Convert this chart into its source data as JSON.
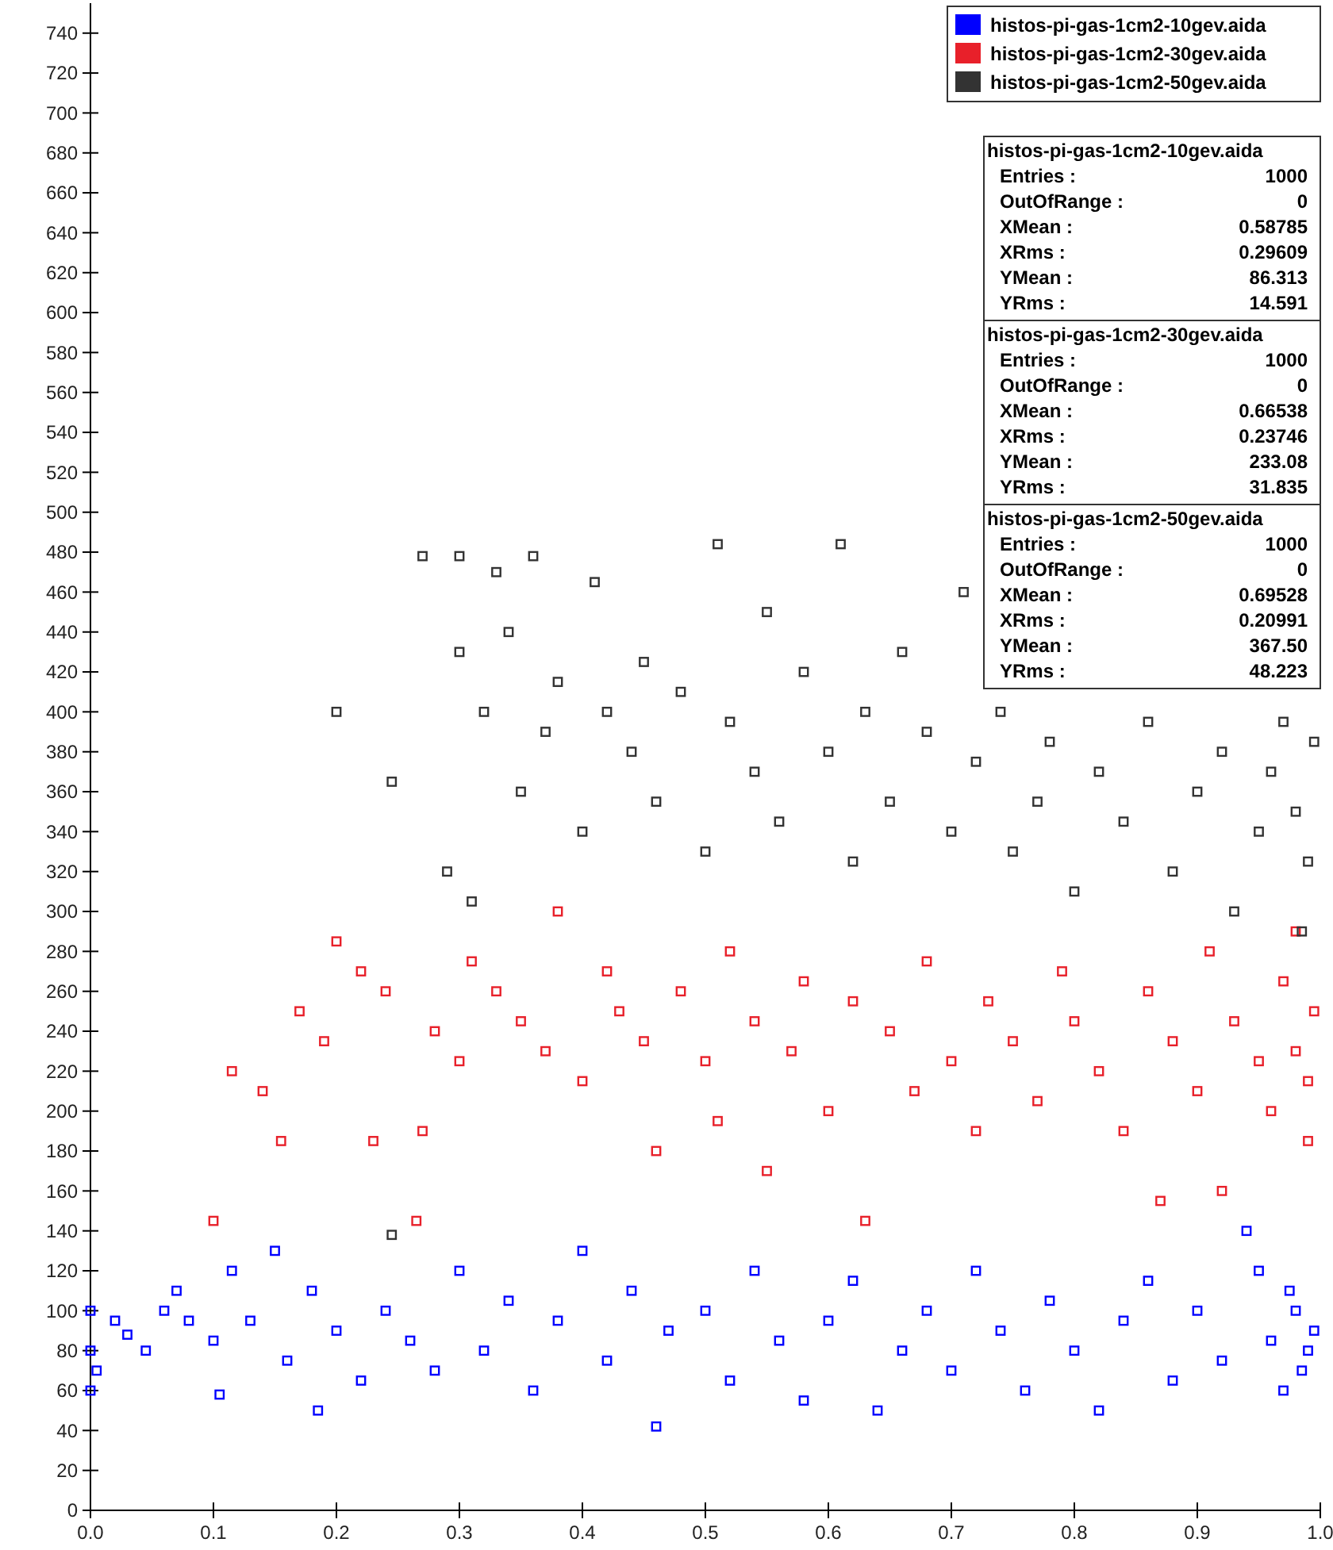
{
  "chart_data": {
    "type": "scatter",
    "marker": "square",
    "legend": "top right",
    "grid": false,
    "xlim": [
      0,
      1
    ],
    "xticks": [
      {
        "value": 0,
        "label": "0.0"
      },
      0.1,
      0.2,
      0.3,
      0.4,
      0.5,
      0.6,
      0.7,
      0.8,
      0.9,
      {
        "value": 1,
        "label": "1.0"
      }
    ],
    "ylim": [
      0,
      755
    ],
    "yticks": [
      0,
      20,
      40,
      60,
      80,
      100,
      120,
      140,
      160,
      180,
      200,
      220,
      240,
      260,
      280,
      300,
      320,
      340,
      360,
      380,
      400,
      420,
      440,
      460,
      480,
      500,
      520,
      540,
      560,
      580,
      600,
      620,
      640,
      660,
      680,
      700,
      720,
      740
    ],
    "series": [
      {
        "name": "histos-pi-gas-1cm2-10gev.aida",
        "color": "#0000ff",
        "x": [
          0.0,
          0.0,
          0.0,
          0.005,
          0.02,
          0.03,
          0.045,
          0.06,
          0.07,
          0.08,
          0.1,
          0.105,
          0.115,
          0.13,
          0.15,
          0.16,
          0.18,
          0.185,
          0.2,
          0.22,
          0.24,
          0.26,
          0.28,
          0.3,
          0.32,
          0.34,
          0.36,
          0.38,
          0.4,
          0.42,
          0.44,
          0.46,
          0.47,
          0.5,
          0.52,
          0.54,
          0.56,
          0.58,
          0.6,
          0.62,
          0.64,
          0.66,
          0.68,
          0.7,
          0.72,
          0.74,
          0.76,
          0.78,
          0.8,
          0.82,
          0.84,
          0.86,
          0.88,
          0.9,
          0.92,
          0.94,
          0.95,
          0.96,
          0.97,
          0.98,
          0.99,
          0.995,
          0.985,
          0.975
        ],
        "values": [
          60,
          80,
          100,
          70,
          95,
          88,
          80,
          100,
          110,
          95,
          85,
          58,
          120,
          95,
          130,
          75,
          110,
          50,
          90,
          65,
          100,
          85,
          70,
          120,
          80,
          105,
          60,
          95,
          130,
          75,
          110,
          42,
          90,
          100,
          65,
          120,
          85,
          55,
          95,
          115,
          50,
          80,
          100,
          70,
          120,
          90,
          60,
          105,
          80,
          50,
          95,
          115,
          65,
          100,
          75,
          140,
          120,
          85,
          60,
          100,
          80,
          90,
          70,
          110
        ]
      },
      {
        "name": "histos-pi-gas-1cm2-30gev.aida",
        "color": "#e8202a",
        "x": [
          0.1,
          0.115,
          0.14,
          0.155,
          0.17,
          0.19,
          0.2,
          0.22,
          0.23,
          0.24,
          0.265,
          0.27,
          0.28,
          0.3,
          0.31,
          0.33,
          0.35,
          0.37,
          0.38,
          0.4,
          0.42,
          0.43,
          0.45,
          0.46,
          0.48,
          0.5,
          0.51,
          0.52,
          0.54,
          0.55,
          0.57,
          0.58,
          0.6,
          0.62,
          0.63,
          0.65,
          0.67,
          0.68,
          0.7,
          0.72,
          0.73,
          0.75,
          0.77,
          0.79,
          0.8,
          0.82,
          0.84,
          0.86,
          0.87,
          0.88,
          0.9,
          0.91,
          0.92,
          0.93,
          0.95,
          0.96,
          0.97,
          0.98,
          0.99,
          0.995,
          0.99,
          0.98
        ],
        "values": [
          145,
          220,
          210,
          185,
          250,
          235,
          285,
          270,
          185,
          260,
          145,
          190,
          240,
          225,
          275,
          260,
          245,
          230,
          300,
          215,
          270,
          250,
          235,
          180,
          260,
          225,
          195,
          280,
          245,
          170,
          230,
          265,
          200,
          255,
          145,
          240,
          210,
          275,
          225,
          190,
          255,
          235,
          205,
          270,
          245,
          220,
          190,
          260,
          155,
          235,
          210,
          280,
          160,
          245,
          225,
          200,
          265,
          230,
          215,
          250,
          185,
          290
        ]
      },
      {
        "name": "histos-pi-gas-1cm2-50gev.aida",
        "color": "#333333",
        "x": [
          0.2,
          0.245,
          0.245,
          0.27,
          0.29,
          0.3,
          0.3,
          0.31,
          0.32,
          0.33,
          0.34,
          0.35,
          0.36,
          0.37,
          0.38,
          0.4,
          0.41,
          0.42,
          0.44,
          0.45,
          0.46,
          0.48,
          0.5,
          0.51,
          0.52,
          0.54,
          0.55,
          0.56,
          0.58,
          0.6,
          0.61,
          0.62,
          0.63,
          0.65,
          0.66,
          0.68,
          0.7,
          0.71,
          0.72,
          0.74,
          0.75,
          0.77,
          0.78,
          0.8,
          0.82,
          0.84,
          0.86,
          0.88,
          0.9,
          0.92,
          0.93,
          0.95,
          0.96,
          0.97,
          0.98,
          0.99,
          0.995,
          0.985
        ],
        "values": [
          400,
          138,
          365,
          478,
          320,
          478,
          430,
          305,
          400,
          470,
          440,
          360,
          478,
          390,
          415,
          340,
          465,
          400,
          380,
          425,
          355,
          410,
          330,
          484,
          395,
          370,
          450,
          345,
          420,
          380,
          484,
          325,
          400,
          355,
          430,
          390,
          340,
          460,
          375,
          400,
          330,
          355,
          385,
          310,
          370,
          345,
          395,
          320,
          360,
          380,
          300,
          340,
          370,
          395,
          350,
          325,
          385,
          290
        ]
      }
    ],
    "annotations": [
      "histos-pi-gas-1cm2-10gev.aida",
      "Entries : 1000",
      "OutOfRange : 0",
      "XMean : 0.58785",
      "XRms : 0.29609",
      "YMean : 86.313",
      "YRms : 14.591",
      "histos-pi-gas-1cm2-30gev.aida",
      "Entries : 1000",
      "OutOfRange : 0",
      "XMean : 0.66538",
      "XRms : 0.23746",
      "YMean : 233.08",
      "YRms : 31.835",
      "histos-pi-gas-1cm2-50gev.aida",
      "Entries : 1000",
      "OutOfRange : 0",
      "XMean : 0.69528",
      "XRms : 0.20991",
      "YMean : 367.50",
      "YRms : 48.223"
    ]
  }
}
